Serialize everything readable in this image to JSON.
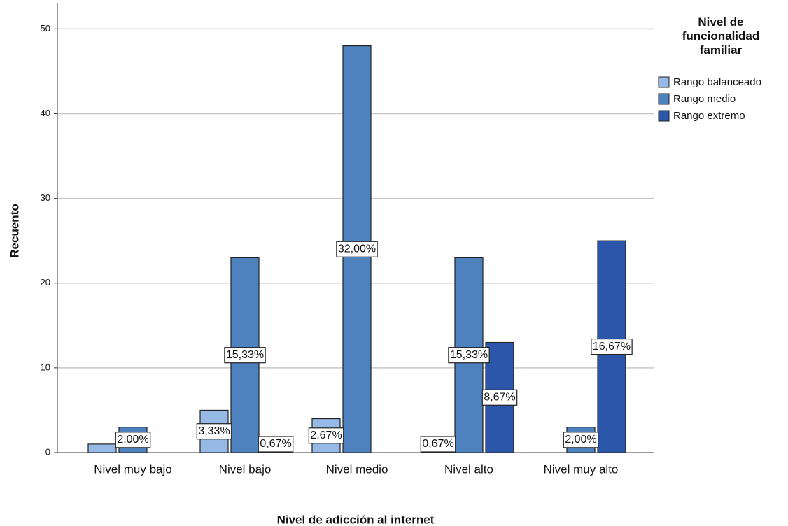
{
  "chart_data": {
    "type": "bar",
    "x_label": "Nivel de adicción al internet",
    "y_label": "Recuento",
    "legend_title": "Nivel de funcionalidad familiar",
    "categories": [
      "Nivel muy bajo",
      "Nivel bajo",
      "Nivel medio",
      "Nivel alto",
      "Nivel muy alto"
    ],
    "series": [
      {
        "name": "Rango balanceado",
        "color": "#97b9e6",
        "values": [
          1,
          5,
          4,
          1,
          0
        ],
        "value_labels": [
          null,
          "3,33%",
          "2,67%",
          "0,67%",
          null
        ]
      },
      {
        "name": "Rango medio",
        "color": "#4d82bf",
        "values": [
          3,
          23,
          48,
          23,
          3
        ],
        "value_labels": [
          "2,00%",
          "15,33%",
          "32,00%",
          "15,33%",
          "2,00%"
        ]
      },
      {
        "name": "Rango extremo",
        "color": "#2b56a9",
        "values": [
          0,
          1,
          0,
          13,
          25
        ],
        "value_labels": [
          null,
          "0,67%",
          null,
          "8,67%",
          "16,67%"
        ]
      }
    ],
    "ylim": [
      0,
      53
    ],
    "yticks": [
      0,
      10,
      20,
      30,
      40,
      50
    ],
    "grid": true,
    "legend": "top-right"
  }
}
